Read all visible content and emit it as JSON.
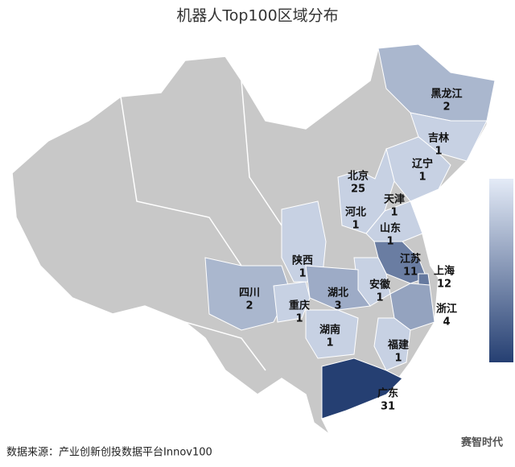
{
  "chart_data": {
    "type": "choropleth",
    "title": "机器人Top100区域分布",
    "regions": [
      {
        "name": "黑龙江",
        "value": 2
      },
      {
        "name": "吉林",
        "value": 1
      },
      {
        "name": "辽宁",
        "value": 1
      },
      {
        "name": "北京",
        "value": 25
      },
      {
        "name": "天津",
        "value": 1
      },
      {
        "name": "河北",
        "value": 1
      },
      {
        "name": "山东",
        "value": 1
      },
      {
        "name": "江苏",
        "value": 11
      },
      {
        "name": "上海",
        "value": 12
      },
      {
        "name": "安徽",
        "value": 1
      },
      {
        "name": "浙江",
        "value": 4
      },
      {
        "name": "陕西",
        "value": 1
      },
      {
        "name": "四川",
        "value": 2
      },
      {
        "name": "湖北",
        "value": 3
      },
      {
        "name": "重庆",
        "value": 1
      },
      {
        "name": "湖南",
        "value": 1
      },
      {
        "name": "福建",
        "value": 1
      },
      {
        "name": "广东",
        "value": 31
      }
    ],
    "colors": [
      "#e4ebf7",
      "#253f72"
    ],
    "source": "数据来源：产业创新创投数据平台Innov100",
    "logo": "赛智时代"
  }
}
